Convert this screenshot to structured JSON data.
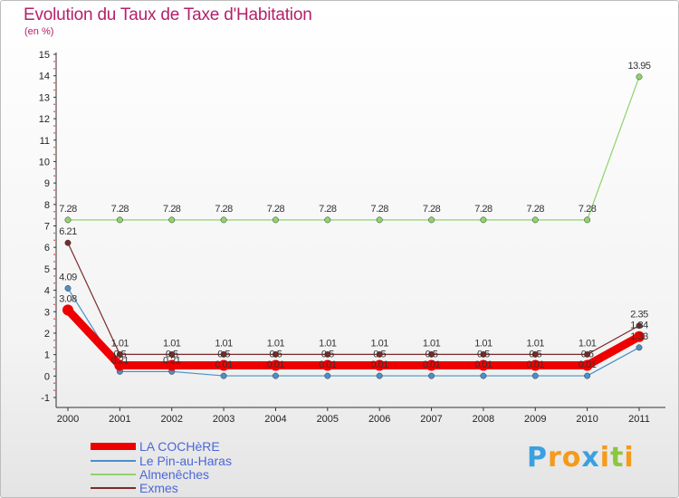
{
  "title": "Evolution du Taux de Taxe d'Habitation",
  "subtitle": "(en %)",
  "brand": {
    "letters": [
      "P",
      "r",
      "o",
      "x",
      "i",
      "t",
      "i"
    ],
    "colors": [
      "#3aa0e0",
      "#f59a1b",
      "#f59a1b",
      "#3aa0e0",
      "#f59a1b",
      "#8cc63e",
      "#f59a1b"
    ]
  },
  "chart_data": {
    "type": "line",
    "title": "Evolution du Taux de Taxe d'Habitation",
    "ylabel": "(en %)",
    "xlabel": "",
    "categories": [
      "2000",
      "2001",
      "2002",
      "2003",
      "2004",
      "2005",
      "2006",
      "2007",
      "2008",
      "2009",
      "2010",
      "2011"
    ],
    "ylim": [
      -1,
      15
    ],
    "yticks": [
      "-1",
      "0",
      "1",
      "2",
      "3",
      "4",
      "5",
      "6",
      "7",
      "8",
      "9",
      "10",
      "11",
      "12",
      "13",
      "14",
      "15"
    ],
    "grid": false,
    "legend_position": "bottom-left",
    "series": [
      {
        "name": "LA COCHèRE",
        "color": "#ee0000",
        "values": [
          3.08,
          0.5,
          0.5,
          0.5,
          0.5,
          0.5,
          0.5,
          0.5,
          0.5,
          0.5,
          0.5,
          1.84
        ],
        "labels": [
          "3.08",
          "0.5",
          "0.5",
          "0.5",
          "0.5",
          "0.5",
          "0.5",
          "0.5",
          "0.5",
          "0.5",
          "0.5",
          "1.84"
        ]
      },
      {
        "name": "Le Pin-au-Haras",
        "color": "#4a90c9",
        "values": [
          4.09,
          0.21,
          0.21,
          0.01,
          0.01,
          0.01,
          0.01,
          0.01,
          0.01,
          0.01,
          0.01,
          1.33
        ],
        "labels": [
          "4.09",
          "0.21",
          "0.21",
          "0.01",
          "0.01",
          "0.01",
          "0.01",
          "0.01",
          "0.01",
          "0.01",
          "0.01",
          "1.33"
        ]
      },
      {
        "name": "Almenêches",
        "color": "#8fd46b",
        "values": [
          7.28,
          7.28,
          7.28,
          7.28,
          7.28,
          7.28,
          7.28,
          7.28,
          7.28,
          7.28,
          7.28,
          13.95
        ],
        "labels": [
          "7.28",
          "7.28",
          "7.28",
          "7.28",
          "7.28",
          "7.28",
          "7.28",
          "7.28",
          "7.28",
          "7.28",
          "7.28",
          "13.95"
        ]
      },
      {
        "name": "Exmes",
        "color": "#7b2a2a",
        "values": [
          6.21,
          1.01,
          1.01,
          1.01,
          1.01,
          1.01,
          1.01,
          1.01,
          1.01,
          1.01,
          1.01,
          2.35
        ],
        "labels": [
          "6.21",
          "1.01",
          "1.01",
          "1.01",
          "1.01",
          "1.01",
          "1.01",
          "1.01",
          "1.01",
          "1.01",
          "1.01",
          "2.35"
        ]
      }
    ]
  }
}
